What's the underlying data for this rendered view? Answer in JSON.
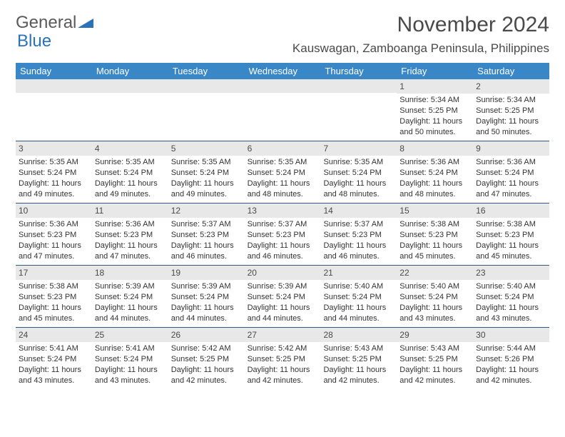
{
  "logo": {
    "text1": "General",
    "text2": "Blue"
  },
  "title": "November 2024",
  "location": "Kauswagan, Zamboanga Peninsula, Philippines",
  "colors": {
    "header_bg": "#3a87c8",
    "header_text": "#ffffff",
    "row_divider": "#2b5a85",
    "daynum_bg": "#e8e8e8",
    "text": "#333333",
    "logo_gray": "#5a5a5a",
    "logo_blue": "#2b73b8"
  },
  "layout": {
    "cols": 7,
    "rows": 5,
    "cell_fontsize": 11,
    "header_fontsize": 13
  },
  "weekdays": [
    "Sunday",
    "Monday",
    "Tuesday",
    "Wednesday",
    "Thursday",
    "Friday",
    "Saturday"
  ],
  "cells": [
    [
      {
        "day": "",
        "lines": []
      },
      {
        "day": "",
        "lines": []
      },
      {
        "day": "",
        "lines": []
      },
      {
        "day": "",
        "lines": []
      },
      {
        "day": "",
        "lines": []
      },
      {
        "day": "1",
        "lines": [
          "Sunrise: 5:34 AM",
          "Sunset: 5:25 PM",
          "Daylight: 11 hours and 50 minutes."
        ]
      },
      {
        "day": "2",
        "lines": [
          "Sunrise: 5:34 AM",
          "Sunset: 5:25 PM",
          "Daylight: 11 hours and 50 minutes."
        ]
      }
    ],
    [
      {
        "day": "3",
        "lines": [
          "Sunrise: 5:35 AM",
          "Sunset: 5:24 PM",
          "Daylight: 11 hours and 49 minutes."
        ]
      },
      {
        "day": "4",
        "lines": [
          "Sunrise: 5:35 AM",
          "Sunset: 5:24 PM",
          "Daylight: 11 hours and 49 minutes."
        ]
      },
      {
        "day": "5",
        "lines": [
          "Sunrise: 5:35 AM",
          "Sunset: 5:24 PM",
          "Daylight: 11 hours and 49 minutes."
        ]
      },
      {
        "day": "6",
        "lines": [
          "Sunrise: 5:35 AM",
          "Sunset: 5:24 PM",
          "Daylight: 11 hours and 48 minutes."
        ]
      },
      {
        "day": "7",
        "lines": [
          "Sunrise: 5:35 AM",
          "Sunset: 5:24 PM",
          "Daylight: 11 hours and 48 minutes."
        ]
      },
      {
        "day": "8",
        "lines": [
          "Sunrise: 5:36 AM",
          "Sunset: 5:24 PM",
          "Daylight: 11 hours and 48 minutes."
        ]
      },
      {
        "day": "9",
        "lines": [
          "Sunrise: 5:36 AM",
          "Sunset: 5:24 PM",
          "Daylight: 11 hours and 47 minutes."
        ]
      }
    ],
    [
      {
        "day": "10",
        "lines": [
          "Sunrise: 5:36 AM",
          "Sunset: 5:23 PM",
          "Daylight: 11 hours and 47 minutes."
        ]
      },
      {
        "day": "11",
        "lines": [
          "Sunrise: 5:36 AM",
          "Sunset: 5:23 PM",
          "Daylight: 11 hours and 47 minutes."
        ]
      },
      {
        "day": "12",
        "lines": [
          "Sunrise: 5:37 AM",
          "Sunset: 5:23 PM",
          "Daylight: 11 hours and 46 minutes."
        ]
      },
      {
        "day": "13",
        "lines": [
          "Sunrise: 5:37 AM",
          "Sunset: 5:23 PM",
          "Daylight: 11 hours and 46 minutes."
        ]
      },
      {
        "day": "14",
        "lines": [
          "Sunrise: 5:37 AM",
          "Sunset: 5:23 PM",
          "Daylight: 11 hours and 46 minutes."
        ]
      },
      {
        "day": "15",
        "lines": [
          "Sunrise: 5:38 AM",
          "Sunset: 5:23 PM",
          "Daylight: 11 hours and 45 minutes."
        ]
      },
      {
        "day": "16",
        "lines": [
          "Sunrise: 5:38 AM",
          "Sunset: 5:23 PM",
          "Daylight: 11 hours and 45 minutes."
        ]
      }
    ],
    [
      {
        "day": "17",
        "lines": [
          "Sunrise: 5:38 AM",
          "Sunset: 5:23 PM",
          "Daylight: 11 hours and 45 minutes."
        ]
      },
      {
        "day": "18",
        "lines": [
          "Sunrise: 5:39 AM",
          "Sunset: 5:24 PM",
          "Daylight: 11 hours and 44 minutes."
        ]
      },
      {
        "day": "19",
        "lines": [
          "Sunrise: 5:39 AM",
          "Sunset: 5:24 PM",
          "Daylight: 11 hours and 44 minutes."
        ]
      },
      {
        "day": "20",
        "lines": [
          "Sunrise: 5:39 AM",
          "Sunset: 5:24 PM",
          "Daylight: 11 hours and 44 minutes."
        ]
      },
      {
        "day": "21",
        "lines": [
          "Sunrise: 5:40 AM",
          "Sunset: 5:24 PM",
          "Daylight: 11 hours and 44 minutes."
        ]
      },
      {
        "day": "22",
        "lines": [
          "Sunrise: 5:40 AM",
          "Sunset: 5:24 PM",
          "Daylight: 11 hours and 43 minutes."
        ]
      },
      {
        "day": "23",
        "lines": [
          "Sunrise: 5:40 AM",
          "Sunset: 5:24 PM",
          "Daylight: 11 hours and 43 minutes."
        ]
      }
    ],
    [
      {
        "day": "24",
        "lines": [
          "Sunrise: 5:41 AM",
          "Sunset: 5:24 PM",
          "Daylight: 11 hours and 43 minutes."
        ]
      },
      {
        "day": "25",
        "lines": [
          "Sunrise: 5:41 AM",
          "Sunset: 5:24 PM",
          "Daylight: 11 hours and 43 minutes."
        ]
      },
      {
        "day": "26",
        "lines": [
          "Sunrise: 5:42 AM",
          "Sunset: 5:25 PM",
          "Daylight: 11 hours and 42 minutes."
        ]
      },
      {
        "day": "27",
        "lines": [
          "Sunrise: 5:42 AM",
          "Sunset: 5:25 PM",
          "Daylight: 11 hours and 42 minutes."
        ]
      },
      {
        "day": "28",
        "lines": [
          "Sunrise: 5:43 AM",
          "Sunset: 5:25 PM",
          "Daylight: 11 hours and 42 minutes."
        ]
      },
      {
        "day": "29",
        "lines": [
          "Sunrise: 5:43 AM",
          "Sunset: 5:25 PM",
          "Daylight: 11 hours and 42 minutes."
        ]
      },
      {
        "day": "30",
        "lines": [
          "Sunrise: 5:44 AM",
          "Sunset: 5:26 PM",
          "Daylight: 11 hours and 42 minutes."
        ]
      }
    ]
  ]
}
